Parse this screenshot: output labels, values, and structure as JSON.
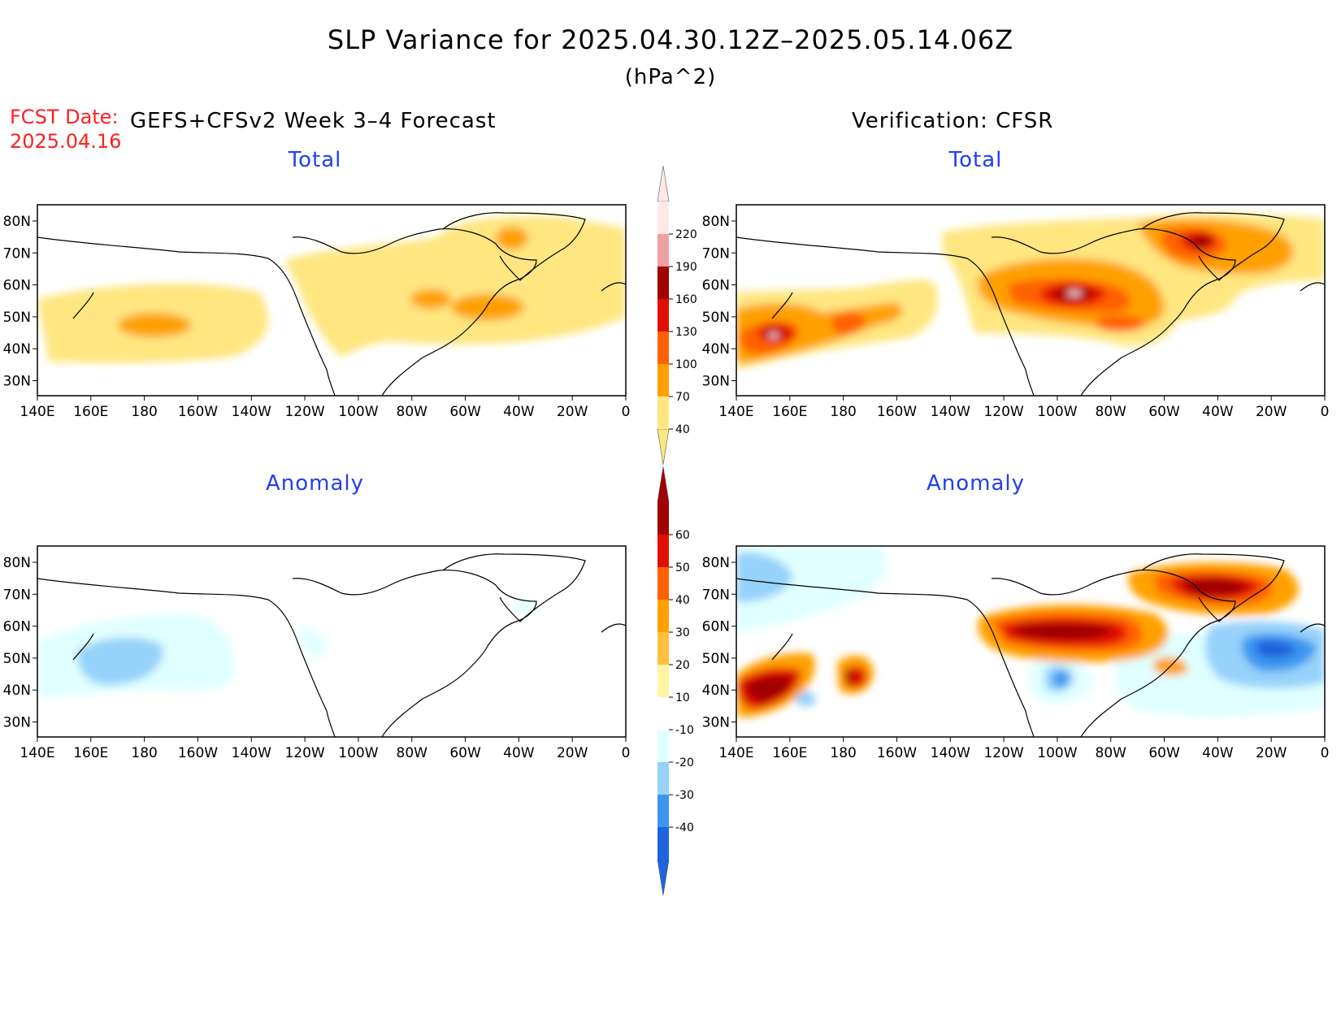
{
  "header": {
    "title": "SLP Variance for 2025.04.30.12Z–2025.05.14.06Z",
    "units": "(hPa^2)",
    "fcst_date_label": "FCST Date:",
    "fcst_date_value": "2025.04.16",
    "left_heading": "GEFS+CFSv2 Week 3–4 Forecast",
    "right_heading": "Verification: CFSR"
  },
  "panels": {
    "fcst_total": {
      "title": "Total"
    },
    "verif_total": {
      "title": "Total"
    },
    "fcst_anomaly": {
      "title": "Anomaly"
    },
    "verif_anomaly": {
      "title": "Anomaly"
    }
  },
  "axes": {
    "lat_labels": [
      "80N",
      "70N",
      "60N",
      "50N",
      "40N",
      "30N"
    ],
    "lon_labels": [
      "140E",
      "160E",
      "180",
      "160W",
      "140W",
      "120W",
      "100W",
      "80W",
      "60W",
      "40W",
      "20W",
      "0"
    ]
  },
  "colorbars": {
    "total": {
      "levels": [
        "40",
        "70",
        "100",
        "130",
        "160",
        "190",
        "220"
      ],
      "colors": [
        "#ffe680",
        "#ffa000",
        "#ff6000",
        "#e01000",
        "#a00000",
        "#f0a0a0",
        "#ffe8e8"
      ]
    },
    "anomaly": {
      "levels": [
        "-40",
        "-30",
        "-20",
        "-10",
        "10",
        "20",
        "30",
        "40",
        "50",
        "60"
      ],
      "colors": [
        "#1e64dc",
        "#3c96f0",
        "#96d2fa",
        "#e0ffff",
        "#ffffff",
        "#fff5a0",
        "#ffc040",
        "#ffa000",
        "#ff6000",
        "#e01000",
        "#a00000"
      ]
    }
  }
}
